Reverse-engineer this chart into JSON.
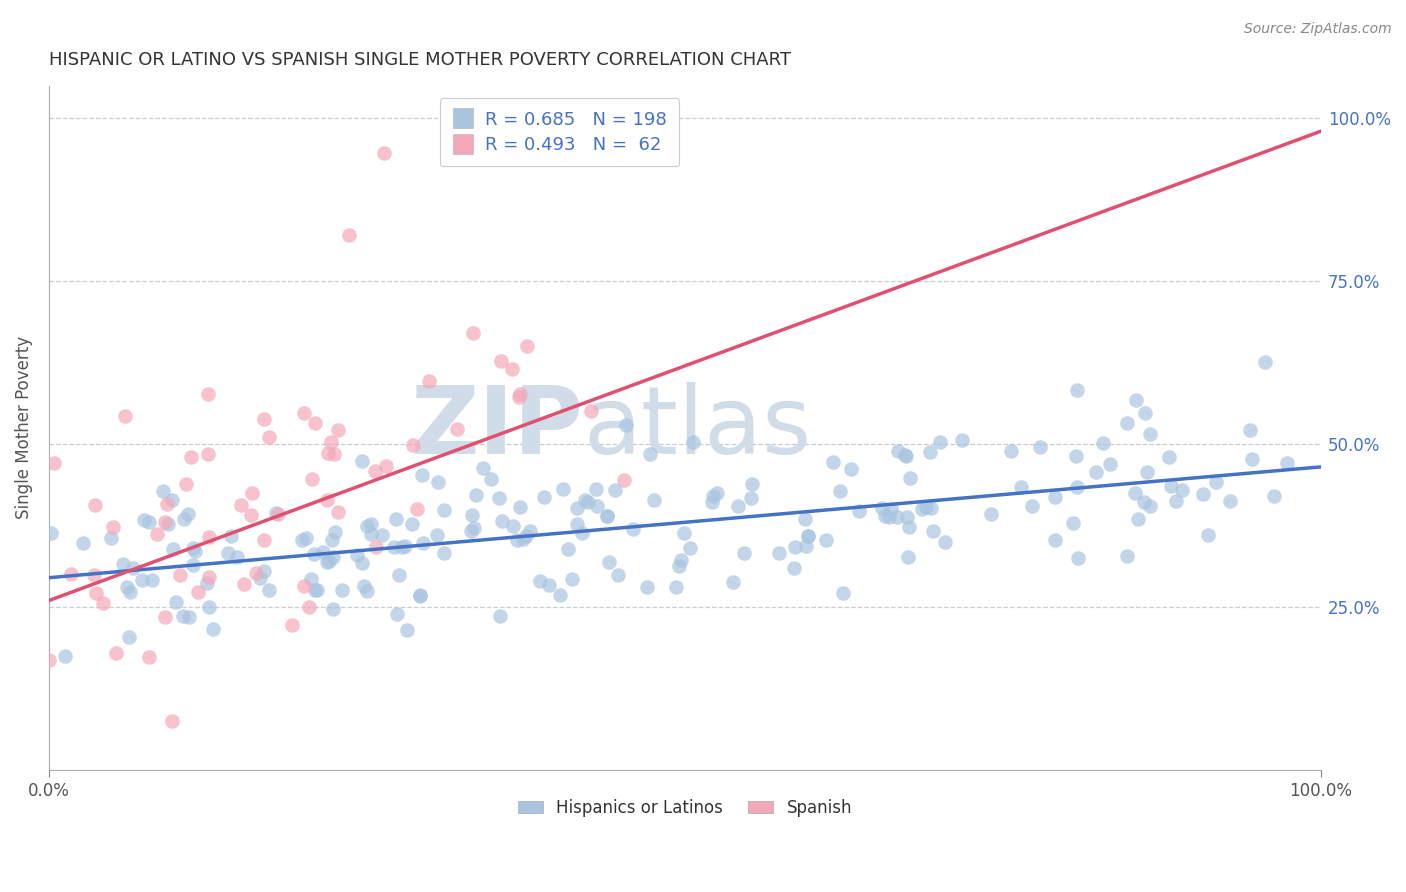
{
  "title": "HISPANIC OR LATINO VS SPANISH SINGLE MOTHER POVERTY CORRELATION CHART",
  "source": "Source: ZipAtlas.com",
  "ylabel": "Single Mother Poverty",
  "xlim": [
    0,
    1
  ],
  "ylim": [
    0.0,
    1.05
  ],
  "legend_label1": "Hispanics or Latinos",
  "legend_label2": "Spanish",
  "R1": 0.685,
  "N1": 198,
  "R2": 0.493,
  "N2": 62,
  "color1": "#a8c4e0",
  "color2": "#f4a7b9",
  "line_color1": "#4472c4",
  "line_color2": "#e05070",
  "watermark_zip": "ZIP",
  "watermark_atlas": "atlas",
  "watermark_color": "#d0dce8",
  "background_color": "#ffffff",
  "title_fontsize": 13,
  "seed": 99,
  "blue_slope": 0.17,
  "blue_intercept": 0.295,
  "pink_slope": 0.72,
  "pink_intercept": 0.26
}
